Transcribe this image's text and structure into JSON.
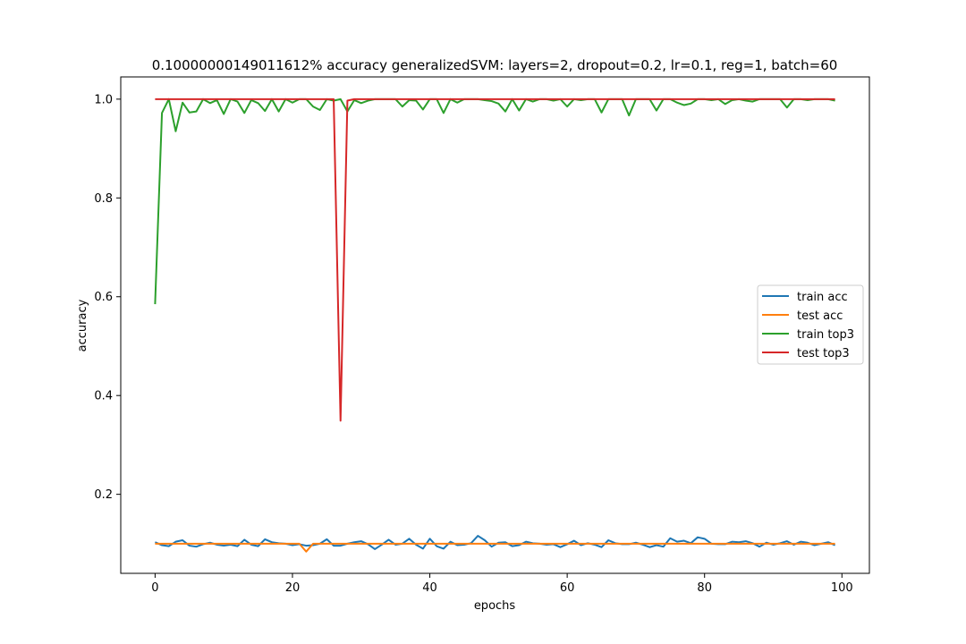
{
  "chart_data": {
    "type": "line",
    "title": "0.10000000149011612% accuracy generalizedSVM: layers=2, dropout=0.2, lr=0.1, reg=1, batch=60",
    "xlabel": "epochs",
    "ylabel": "accuracy",
    "xlim": [
      -5,
      104
    ],
    "ylim": [
      0.04,
      1.045
    ],
    "xticks": [
      0,
      20,
      40,
      60,
      80,
      100
    ],
    "xtick_labels": [
      "0",
      "20",
      "40",
      "60",
      "80",
      "100"
    ],
    "yticks": [
      0.2,
      0.4,
      0.6,
      0.8,
      1.0
    ],
    "ytick_labels": [
      "0.2",
      "0.4",
      "0.6",
      "0.8",
      "1.0"
    ],
    "grid": false,
    "legend_position": "center-right",
    "series": [
      {
        "name": "train acc",
        "color": "#1f77b4",
        "x_start": 0,
        "values": [
          0.103,
          0.097,
          0.095,
          0.104,
          0.107,
          0.096,
          0.094,
          0.099,
          0.102,
          0.098,
          0.096,
          0.098,
          0.095,
          0.108,
          0.098,
          0.095,
          0.109,
          0.103,
          0.101,
          0.1,
          0.097,
          0.099,
          0.096,
          0.097,
          0.1,
          0.109,
          0.096,
          0.096,
          0.1,
          0.103,
          0.105,
          0.099,
          0.089,
          0.098,
          0.108,
          0.098,
          0.1,
          0.11,
          0.098,
          0.09,
          0.11,
          0.095,
          0.09,
          0.104,
          0.097,
          0.098,
          0.101,
          0.116,
          0.107,
          0.094,
          0.102,
          0.103,
          0.095,
          0.097,
          0.104,
          0.101,
          0.1,
          0.098,
          0.099,
          0.093,
          0.099,
          0.106,
          0.097,
          0.101,
          0.098,
          0.093,
          0.107,
          0.101,
          0.099,
          0.099,
          0.102,
          0.098,
          0.093,
          0.097,
          0.094,
          0.111,
          0.104,
          0.106,
          0.101,
          0.113,
          0.11,
          0.1,
          0.099,
          0.099,
          0.104,
          0.103,
          0.105,
          0.101,
          0.094,
          0.102,
          0.098,
          0.101,
          0.105,
          0.098,
          0.104,
          0.102,
          0.097,
          0.1,
          0.103,
          0.097
        ]
      },
      {
        "name": "test acc",
        "color": "#ff7f0e",
        "x_start": 0,
        "values": [
          0.1,
          0.1,
          0.1,
          0.1,
          0.1,
          0.1,
          0.1,
          0.1,
          0.1,
          0.1,
          0.1,
          0.1,
          0.1,
          0.1,
          0.1,
          0.1,
          0.1,
          0.1,
          0.1,
          0.1,
          0.1,
          0.1,
          0.084,
          0.1,
          0.1,
          0.1,
          0.1,
          0.1,
          0.1,
          0.1,
          0.1,
          0.1,
          0.1,
          0.1,
          0.1,
          0.1,
          0.1,
          0.1,
          0.1,
          0.1,
          0.1,
          0.1,
          0.1,
          0.1,
          0.1,
          0.1,
          0.1,
          0.1,
          0.1,
          0.1,
          0.1,
          0.1,
          0.1,
          0.1,
          0.1,
          0.1,
          0.1,
          0.1,
          0.1,
          0.1,
          0.1,
          0.1,
          0.1,
          0.1,
          0.1,
          0.1,
          0.1,
          0.1,
          0.1,
          0.1,
          0.1,
          0.1,
          0.1,
          0.1,
          0.1,
          0.1,
          0.1,
          0.1,
          0.1,
          0.1,
          0.1,
          0.1,
          0.1,
          0.1,
          0.1,
          0.1,
          0.1,
          0.1,
          0.1,
          0.1,
          0.1,
          0.1,
          0.1,
          0.1,
          0.1,
          0.1,
          0.1,
          0.1,
          0.1,
          0.1
        ]
      },
      {
        "name": "train top3",
        "color": "#2ca02c",
        "x_start": 0,
        "values": [
          0.585,
          0.972,
          1.0,
          0.935,
          0.993,
          0.973,
          0.975,
          1.0,
          0.992,
          0.998,
          0.97,
          1.0,
          0.995,
          0.972,
          0.998,
          0.992,
          0.976,
          1.0,
          0.975,
          1.0,
          0.993,
          1.0,
          1.0,
          0.985,
          0.978,
          1.0,
          0.997,
          1.0,
          0.975,
          0.998,
          0.992,
          0.997,
          1.0,
          1.0,
          1.0,
          1.0,
          0.985,
          0.998,
          0.997,
          0.979,
          1.0,
          1.0,
          0.972,
          1.0,
          0.993,
          1.0,
          1.0,
          1.0,
          0.998,
          0.996,
          0.991,
          0.975,
          1.0,
          0.977,
          1.0,
          0.995,
          1.0,
          1.0,
          0.997,
          1.0,
          0.985,
          1.0,
          0.998,
          1.0,
          1.0,
          0.973,
          1.0,
          1.0,
          1.0,
          0.967,
          1.0,
          1.0,
          1.0,
          0.977,
          1.0,
          1.0,
          0.993,
          0.988,
          0.991,
          1.0,
          1.0,
          0.998,
          1.0,
          0.99,
          0.998,
          1.0,
          0.997,
          0.995,
          1.0,
          1.0,
          1.0,
          1.0,
          0.983,
          1.0,
          1.0,
          0.998,
          1.0,
          1.0,
          1.0,
          0.997
        ]
      },
      {
        "name": "test top3",
        "color": "#d62728",
        "x_start": 0,
        "values": [
          1.0,
          1.0,
          1.0,
          1.0,
          1.0,
          1.0,
          1.0,
          1.0,
          1.0,
          1.0,
          1.0,
          1.0,
          1.0,
          1.0,
          1.0,
          1.0,
          1.0,
          1.0,
          1.0,
          1.0,
          1.0,
          1.0,
          1.0,
          1.0,
          1.0,
          1.0,
          1.0,
          0.349,
          0.997,
          1.0,
          1.0,
          1.0,
          1.0,
          1.0,
          1.0,
          1.0,
          1.0,
          1.0,
          1.0,
          1.0,
          1.0,
          1.0,
          1.0,
          1.0,
          1.0,
          1.0,
          1.0,
          1.0,
          1.0,
          1.0,
          1.0,
          1.0,
          1.0,
          1.0,
          1.0,
          1.0,
          1.0,
          1.0,
          1.0,
          1.0,
          1.0,
          1.0,
          1.0,
          1.0,
          1.0,
          1.0,
          1.0,
          1.0,
          1.0,
          1.0,
          1.0,
          1.0,
          1.0,
          1.0,
          1.0,
          1.0,
          1.0,
          1.0,
          1.0,
          1.0,
          1.0,
          1.0,
          1.0,
          1.0,
          1.0,
          1.0,
          1.0,
          1.0,
          1.0,
          1.0,
          1.0,
          1.0,
          1.0,
          1.0,
          1.0,
          1.0,
          1.0,
          1.0,
          1.0,
          1.0
        ]
      }
    ]
  }
}
